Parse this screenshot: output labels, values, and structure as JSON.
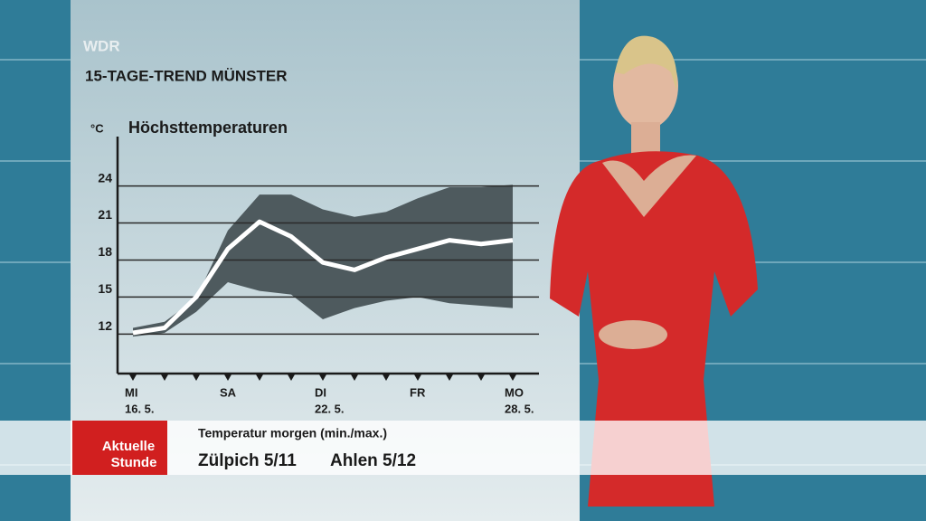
{
  "channel": "WDR",
  "heading": "15-TAGE-TREND MÜNSTER",
  "chart_data": {
    "type": "line-band",
    "title": "Höchsttemperaturen",
    "y_unit": "°C",
    "categories": [
      "MI",
      null,
      null,
      "SA",
      null,
      null,
      "DI",
      null,
      null,
      "FR",
      null,
      null,
      "MO"
    ],
    "category_dates": [
      "16. 5.",
      null,
      null,
      null,
      null,
      null,
      "22. 5.",
      null,
      null,
      null,
      null,
      null,
      "28. 5."
    ],
    "series": [
      {
        "name": "max",
        "color": "#4e5a5e",
        "values": [
          12.5,
          13.0,
          14.9,
          20.4,
          23.3,
          23.3,
          22.1,
          21.5,
          21.9,
          23.0,
          23.9,
          23.9,
          24.1
        ]
      },
      {
        "name": "min",
        "color": "#4e5a5e",
        "values": [
          11.8,
          12.1,
          13.8,
          16.2,
          15.5,
          15.2,
          13.2,
          14.1,
          14.7,
          15.0,
          14.5,
          14.3,
          14.1
        ]
      },
      {
        "name": "trend",
        "color": "#ffffff",
        "values": [
          12.1,
          12.5,
          15.0,
          18.9,
          21.1,
          19.9,
          17.8,
          17.2,
          18.2,
          18.9,
          19.6,
          19.3,
          19.6
        ]
      }
    ],
    "ylim": [
      8.8,
      28
    ],
    "yticks": [
      12,
      15,
      18,
      21,
      24
    ],
    "grid": true
  },
  "ticker": {
    "logo": [
      "Aktuelle",
      "Stunde"
    ],
    "caption": "Temperatur morgen (min./max.)",
    "items": [
      "Zülpich 5/11",
      "Ahlen 5/12"
    ]
  }
}
